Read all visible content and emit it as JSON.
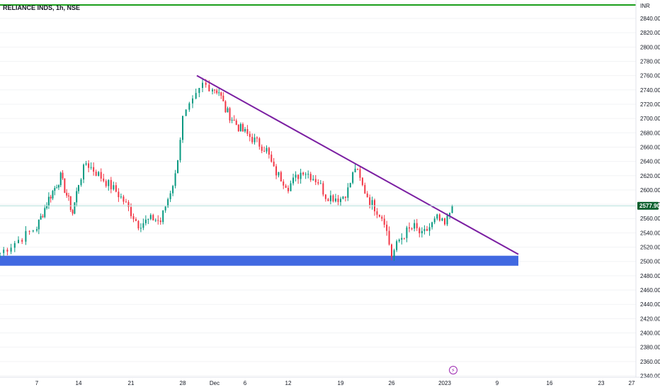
{
  "header": {
    "symbol": "RELIANCE INDS, 1h, NSE"
  },
  "axis": {
    "currency": "INR"
  },
  "current_price_label": "2577.90",
  "badge_icon": "lightning-bolt-icon",
  "colors": {
    "up": "#089981",
    "down": "#f23645",
    "trendline": "#7b1fa2",
    "support_zone": "#4169e1",
    "top_line": "#1b9e1b",
    "price_label_bg": "#0b5f2e"
  },
  "chart_data": {
    "type": "candlestick",
    "title": "RELIANCE INDS, 1h, NSE",
    "ylabel": "INR",
    "ylim": [
      2340,
      2860
    ],
    "y_ticks": [
      2340,
      2360,
      2380,
      2400,
      2420,
      2440,
      2460,
      2480,
      2500,
      2520,
      2540,
      2560,
      2580,
      2600,
      2620,
      2640,
      2660,
      2680,
      2700,
      2720,
      2740,
      2760,
      2780,
      2800,
      2820,
      2840
    ],
    "x_ticks": [
      "7",
      "14",
      "21",
      "28",
      "Dec",
      "6",
      "12",
      "19",
      "26",
      "2023",
      "9",
      "16",
      "23",
      "27"
    ],
    "last_price": 2577.9,
    "price_series": [
      {
        "t": "Nov 4",
        "close": 2512
      },
      {
        "t": "Nov 7",
        "close": 2548
      },
      {
        "t": "Nov 9",
        "close": 2588
      },
      {
        "t": "Nov 11",
        "close": 2618
      },
      {
        "t": "Nov 13",
        "close": 2568
      },
      {
        "t": "Nov 14",
        "close": 2610
      },
      {
        "t": "Nov 15",
        "close": 2638
      },
      {
        "t": "Nov 17",
        "close": 2618
      },
      {
        "t": "Nov 19",
        "close": 2598
      },
      {
        "t": "Nov 20",
        "close": 2585
      },
      {
        "t": "Nov 22",
        "close": 2552
      },
      {
        "t": "Nov 24",
        "close": 2560
      },
      {
        "t": "Nov 25",
        "close": 2556
      },
      {
        "t": "Nov 27",
        "close": 2620
      },
      {
        "t": "Nov 28",
        "close": 2700
      },
      {
        "t": "Nov 29",
        "close": 2722
      },
      {
        "t": "Nov 30",
        "close": 2748
      },
      {
        "t": "Dec 2",
        "close": 2738
      },
      {
        "t": "Dec 3",
        "close": 2712
      },
      {
        "t": "Dec 5",
        "close": 2688
      },
      {
        "t": "Dec 7",
        "close": 2672
      },
      {
        "t": "Dec 9",
        "close": 2656
      },
      {
        "t": "Dec 10",
        "close": 2628
      },
      {
        "t": "Dec 12",
        "close": 2605
      },
      {
        "t": "Dec 14",
        "close": 2628
      },
      {
        "t": "Dec 16",
        "close": 2612
      },
      {
        "t": "Dec 17",
        "close": 2592
      },
      {
        "t": "Dec 19",
        "close": 2588
      },
      {
        "t": "Dec 20",
        "close": 2600
      },
      {
        "t": "Dec 21",
        "close": 2632
      },
      {
        "t": "Dec 22",
        "close": 2605
      },
      {
        "t": "Dec 23",
        "close": 2585
      },
      {
        "t": "Dec 25",
        "close": 2558
      },
      {
        "t": "Dec 26",
        "close": 2508
      },
      {
        "t": "Dec 27",
        "close": 2530
      },
      {
        "t": "Dec 28",
        "close": 2542
      },
      {
        "t": "Dec 29",
        "close": 2548
      },
      {
        "t": "Dec 30",
        "close": 2536
      },
      {
        "t": "Jan 1",
        "close": 2560
      },
      {
        "t": "Jan 2",
        "close": 2550
      },
      {
        "t": "Jan 3",
        "close": 2578
      }
    ],
    "trendline": {
      "x1": "Nov 30",
      "y1": 2760,
      "x2": "Jan 10",
      "y2": 2510
    },
    "support_zone": {
      "from": 2494,
      "to": 2508
    }
  }
}
